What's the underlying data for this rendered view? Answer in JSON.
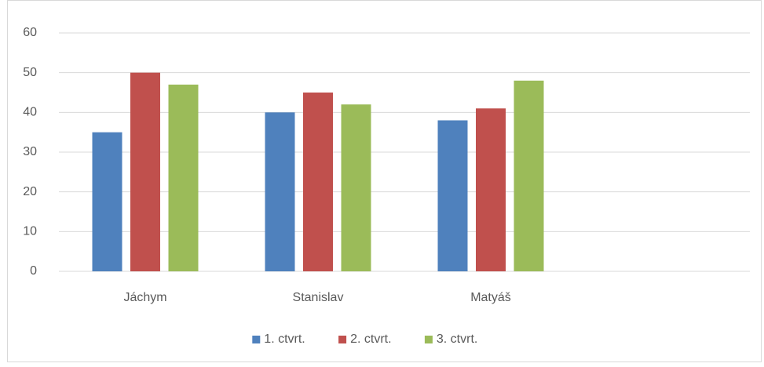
{
  "chart_data": {
    "type": "bar",
    "categories": [
      "Jáchym",
      "Stanislav",
      "Matyáš",
      null
    ],
    "series": [
      {
        "name": "1. ctvrt.",
        "color": "#4f81bd",
        "values": [
          35,
          40,
          38,
          null
        ]
      },
      {
        "name": "2. ctvrt.",
        "color": "#c0504d",
        "values": [
          50,
          45,
          41,
          null
        ]
      },
      {
        "name": "3. ctvrt.",
        "color": "#9bbb59",
        "values": [
          47,
          42,
          48,
          null
        ]
      }
    ],
    "ylim": [
      0,
      60
    ],
    "yticks": [
      0,
      10,
      20,
      30,
      40,
      50,
      60
    ],
    "grid": true,
    "legend": "bottom"
  }
}
